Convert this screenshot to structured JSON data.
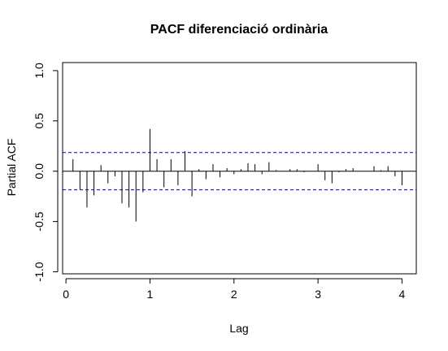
{
  "chart_data": {
    "type": "bar",
    "title": "PACF diferenciació ordinària",
    "xlabel": "Lag",
    "ylabel": "Partial ACF",
    "xlim": [
      -0.04,
      4.17
    ],
    "ylim": [
      -1.02,
      1.08
    ],
    "x_ticks": [
      0,
      1,
      2,
      3,
      4
    ],
    "x_tick_labels": [
      "0",
      "1",
      "2",
      "3",
      "4"
    ],
    "y_ticks": [
      -1,
      -0.5,
      0,
      0.5,
      1
    ],
    "y_tick_labels": [
      "-1.0",
      "-0.5",
      "0.0",
      "0.5",
      "1.0"
    ],
    "confidence_band": 0.185,
    "zero_line": 0,
    "line_color": "#000000",
    "band_color": "#0000cc",
    "grid": false,
    "legend": "none",
    "series": [
      {
        "lag": [
          0.0833,
          0.1667,
          0.25,
          0.3333,
          0.4167,
          0.5,
          0.5833,
          0.6667,
          0.75,
          0.8333,
          0.9167,
          1.0,
          1.0833,
          1.1667,
          1.25,
          1.3333,
          1.4167,
          1.5,
          1.5833,
          1.6667,
          1.75,
          1.8333,
          1.9167,
          2.0,
          2.0833,
          2.1667,
          2.25,
          2.3333,
          2.4167,
          2.5,
          2.5833,
          2.6667,
          2.75,
          2.8333,
          2.9167,
          3.0,
          3.0833,
          3.1667,
          3.25,
          3.3333,
          3.4167,
          3.5,
          3.5833,
          3.6667,
          3.75,
          3.8333,
          3.9167,
          4.0
        ],
        "values": [
          0.12,
          -0.18,
          -0.36,
          -0.24,
          0.06,
          -0.12,
          -0.05,
          -0.32,
          -0.36,
          -0.5,
          -0.21,
          0.42,
          0.12,
          -0.16,
          0.12,
          -0.14,
          0.2,
          -0.25,
          0.02,
          -0.08,
          0.07,
          -0.06,
          0.03,
          -0.03,
          0.02,
          0.08,
          0.07,
          -0.03,
          0.09,
          0.01,
          0.0,
          0.02,
          0.02,
          -0.01,
          0.0,
          0.07,
          -0.09,
          -0.12,
          -0.01,
          0.02,
          0.03,
          0.0,
          0.0,
          0.05,
          0.01,
          0.05,
          -0.05,
          -0.14
        ]
      }
    ]
  }
}
